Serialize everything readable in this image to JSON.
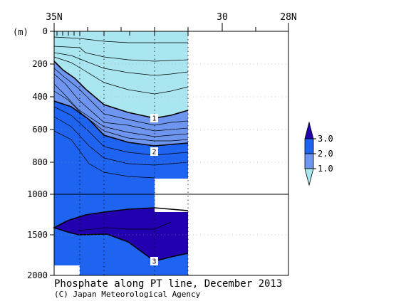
{
  "chart_data": {
    "type": "contour-section",
    "title": "Phosphate along PT line, December 2013",
    "credit": "(C) Japan Meteorological Agency",
    "y_unit_label": "(m)",
    "x_ticks": [
      "35N",
      "30",
      "28N"
    ],
    "y_ticks_upper": [
      "0",
      "200",
      "400",
      "600",
      "800",
      "1000"
    ],
    "y_ticks_lower": [
      "1500",
      "2000"
    ],
    "y_break_depth": 1000,
    "ylim": [
      0,
      2000
    ],
    "contour_labels": [
      "1",
      "2",
      "3"
    ],
    "legend": {
      "labels": [
        "3.0",
        "2.0",
        "1.0"
      ],
      "levels": [
        3.0,
        2.0,
        1.0
      ],
      "colors": [
        "#2200b0",
        "#1e64f0",
        "#6e96f0",
        "#aae6f0"
      ]
    },
    "colors": {
      "lt1": "#aae6f0",
      "b1_2": "#6e96f0",
      "b2_3": "#1e64f0",
      "gt3": "#2200b0"
    }
  }
}
